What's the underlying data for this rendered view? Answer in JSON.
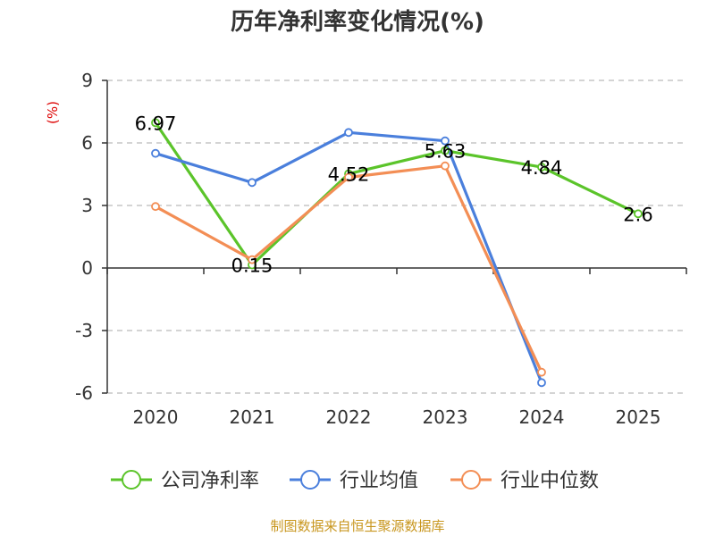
{
  "title": "历年净利率变化情况(%)",
  "source": "制图数据来自恒生聚源数据库",
  "chart_data": {
    "type": "line",
    "ylabel": "(%)",
    "ylim": [
      -6,
      9
    ],
    "yticks": [
      9,
      6,
      3,
      0,
      -3,
      -6
    ],
    "grid": true,
    "legend_position": "bottom",
    "categories": [
      "2020",
      "2021",
      "2022",
      "2023",
      "2024",
      "2025"
    ],
    "series": [
      {
        "name": "公司净利率",
        "color": "#5bc42a",
        "values": [
          6.97,
          0.15,
          4.52,
          5.63,
          4.84,
          2.6
        ],
        "labels": true
      },
      {
        "name": "行业均值",
        "color": "#4a7fdc",
        "values": [
          5.5,
          4.1,
          6.5,
          6.1,
          -5.5,
          null
        ],
        "labels": false
      },
      {
        "name": "行业中位数",
        "color": "#f38e55",
        "values": [
          2.95,
          0.4,
          4.35,
          4.9,
          -5.0,
          null
        ],
        "labels": false
      }
    ]
  },
  "colors": {
    "ylabel": "#dd0000",
    "source": "#c8961e",
    "grid": "#bbbbbb",
    "axis": "#333333"
  }
}
